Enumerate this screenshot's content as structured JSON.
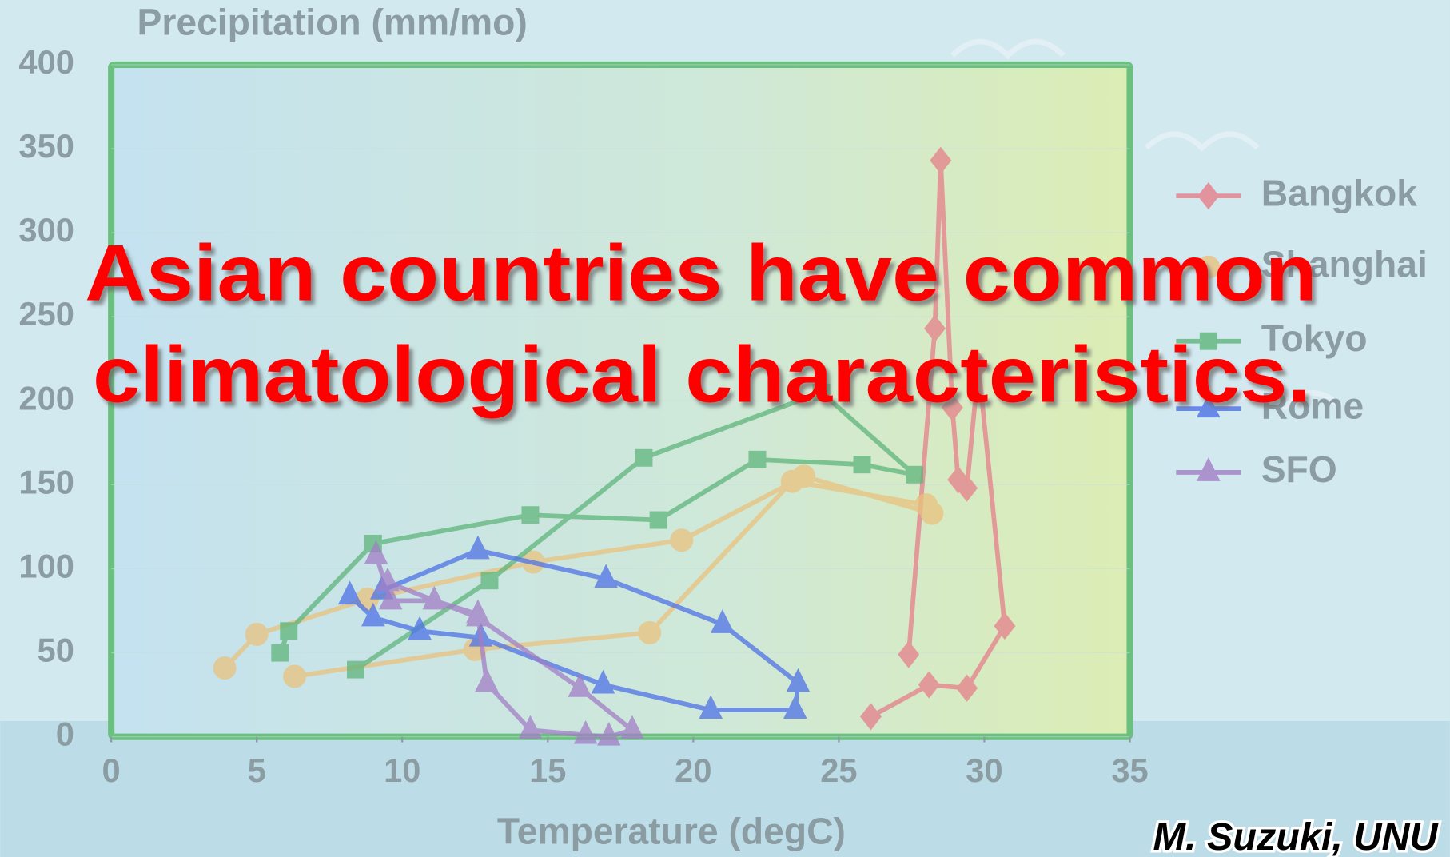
{
  "chart_data": {
    "type": "line",
    "ylabel": "Precipitation (mm/mo)",
    "xlabel": "Temperature (degC)",
    "xlim": [
      0,
      35
    ],
    "ylim": [
      0,
      400
    ],
    "xticks": [
      0,
      5,
      10,
      15,
      20,
      25,
      30,
      35
    ],
    "yticks": [
      0,
      50,
      100,
      150,
      200,
      250,
      300,
      350,
      400
    ],
    "legend_position": "right",
    "annotations": [
      "Asian countries have common",
      "climatological characteristics.",
      "M. Suzuki, UNU"
    ],
    "series": [
      {
        "name": "Bangkok",
        "color": "#e57f8a",
        "marker": "diamond",
        "x": [
          26.1,
          28.1,
          29.4,
          30.7,
          29.8,
          29.4,
          29.1,
          28.9,
          28.5,
          28.3,
          27.4
        ],
        "values": [
          12,
          31,
          29,
          66,
          221,
          148,
          153,
          196,
          343,
          243,
          49
        ]
      },
      {
        "name": "Shanghai",
        "color": "#e9c27e",
        "marker": "circle",
        "x": [
          3.9,
          5.0,
          8.8,
          14.5,
          19.6,
          23.8,
          28.2,
          28.0,
          23.4,
          18.5,
          12.5,
          6.3
        ],
        "values": [
          41,
          61,
          82,
          104,
          117,
          155,
          133,
          138,
          152,
          62,
          52,
          36
        ]
      },
      {
        "name": "Tokyo",
        "color": "#5fb57c",
        "marker": "square",
        "x": [
          5.8,
          6.1,
          9.0,
          14.4,
          18.8,
          22.2,
          25.8,
          27.6,
          24.4,
          18.3,
          13.0,
          8.4
        ],
        "values": [
          50,
          63,
          115,
          132,
          129,
          165,
          162,
          156,
          205,
          166,
          93,
          40
        ]
      },
      {
        "name": "Rome",
        "color": "#4f72e6",
        "marker": "triangle",
        "x": [
          8.2,
          9.0,
          10.6,
          12.7,
          16.9,
          20.6,
          23.5,
          23.6,
          21.0,
          17.0,
          12.6,
          9.3
        ],
        "values": [
          84,
          71,
          63,
          59,
          31,
          16,
          16,
          32,
          67,
          94,
          111,
          87
        ]
      },
      {
        "name": "SFO",
        "color": "#a27ec6",
        "marker": "triangle",
        "x": [
          9.1,
          9.6,
          11.1,
          12.6,
          12.9,
          14.4,
          16.3,
          17.1,
          17.9,
          16.1,
          12.6,
          9.5
        ],
        "values": [
          108,
          81,
          81,
          73,
          32,
          4,
          1,
          0,
          4,
          29,
          71,
          92
        ]
      }
    ]
  }
}
